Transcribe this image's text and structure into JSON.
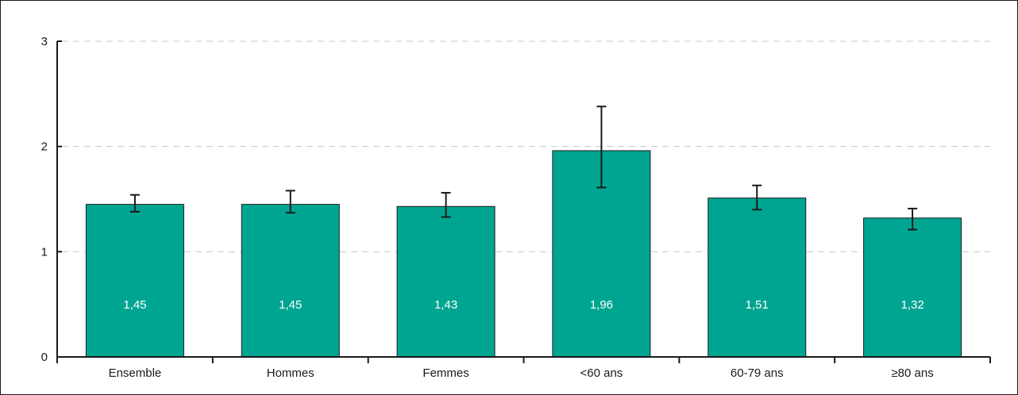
{
  "chart_data": {
    "type": "bar",
    "categories": [
      "Ensemble",
      "Hommes",
      "Femmes",
      "<60 ans",
      "60-79 ans",
      "≥80 ans"
    ],
    "values": [
      1.45,
      1.45,
      1.43,
      1.96,
      1.51,
      1.32
    ],
    "value_labels": [
      "1,45",
      "1,45",
      "1,43",
      "1,96",
      "1,51",
      "1,32"
    ],
    "error_low": [
      1.38,
      1.37,
      1.33,
      1.61,
      1.4,
      1.21
    ],
    "error_high": [
      1.54,
      1.58,
      1.56,
      2.38,
      1.63,
      1.41
    ],
    "title": "",
    "xlabel": "",
    "ylabel": "",
    "ylim": [
      0,
      3
    ],
    "yticks": [
      0,
      1,
      2,
      3
    ],
    "ytick_labels": [
      "0",
      "1",
      "2",
      "3"
    ],
    "grid": true,
    "legend": "none",
    "colors": {
      "bar": "#00a591",
      "bar_edge": "#1a1a1a",
      "error_bar": "#1a1a1a",
      "axis": "#1a1a1a",
      "grid": "#c8c8c8"
    }
  }
}
